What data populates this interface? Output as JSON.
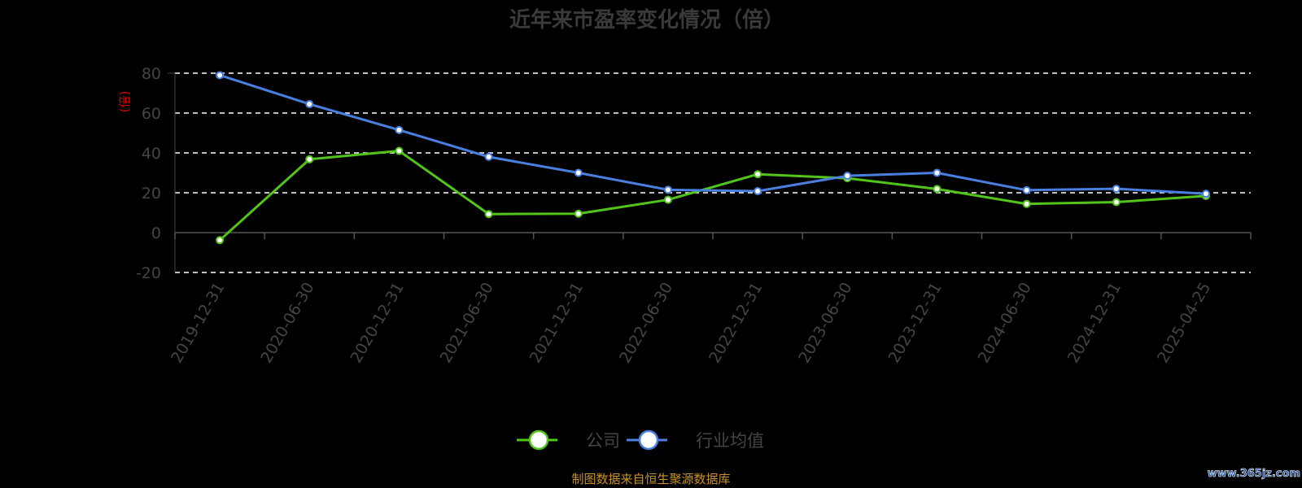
{
  "chart_data": {
    "type": "line",
    "title": "近年来市盈率变化情况（倍）",
    "ylabel": "(倍)",
    "xlabel": "",
    "ylim": [
      -20,
      80
    ],
    "yticks": [
      -20,
      0,
      20,
      40,
      60,
      80
    ],
    "grid": true,
    "legend_position": "bottom-center",
    "categories": [
      "2019-12-31",
      "2020-06-30",
      "2020-12-31",
      "2021-06-30",
      "2021-12-31",
      "2022-06-30",
      "2022-12-31",
      "2023-06-30",
      "2023-12-31",
      "2024-06-30",
      "2024-12-31",
      "2025-04-25"
    ],
    "series": [
      {
        "name": "公司",
        "color": "#52c41a",
        "values": [
          -3.8,
          36.8,
          41.0,
          9.3,
          9.5,
          16.5,
          29.3,
          27.3,
          21.9,
          14.4,
          15.3,
          18.4
        ]
      },
      {
        "name": "行业均值",
        "color": "#4a7fe0",
        "values": [
          79.0,
          64.5,
          51.5,
          38.0,
          30.0,
          21.5,
          20.8,
          28.5,
          30.0,
          21.3,
          22.0,
          19.5
        ]
      }
    ]
  },
  "footer": {
    "source": "制图数据来自恒生聚源数据库",
    "watermark": "www.365jz.com"
  }
}
